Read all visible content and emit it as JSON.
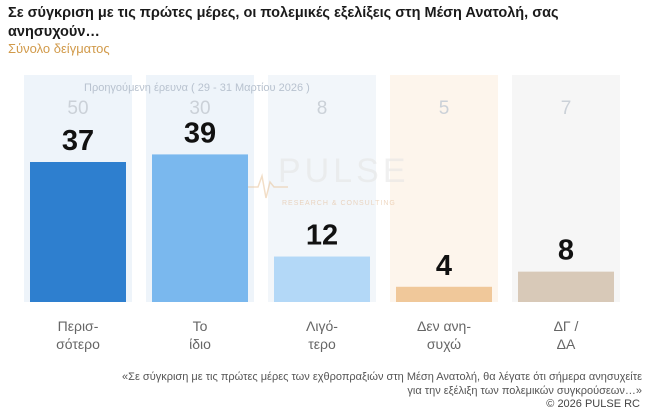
{
  "header": {
    "title": "Σε σύγκριση με τις πρώτες μέρες, οι πολεμικές εξελίξεις στη Μέση Ανατολή, σας ανησυχούν…",
    "subtitle": "Σύνολο δείγματος"
  },
  "chart_data": {
    "type": "bar",
    "categories": [
      "Περισ-σότερο",
      "Το ίδιο",
      "Λιγό-τερο",
      "Δεν ανη-συχώ",
      "ΔΓ / ΔΑ"
    ],
    "category_lines": [
      [
        "Περισ-",
        "σότερο"
      ],
      [
        "Το",
        "ίδιο"
      ],
      [
        "Λιγό-",
        "τερο"
      ],
      [
        "Δεν ανη-",
        "συχώ"
      ],
      [
        "ΔΓ /",
        "ΔΑ"
      ]
    ],
    "series": [
      {
        "name": "Προηγούμενη έρευνα ( 29 - 31 Μαρτίου 2026 )",
        "values": [
          50,
          30,
          8,
          5,
          7
        ]
      },
      {
        "values": [
          37,
          39,
          12,
          4,
          8
        ]
      }
    ],
    "ylim": [
      0,
      60
    ],
    "grid": false,
    "colors": {
      "current_bars": [
        "#2e7fcf",
        "#7ab8ee",
        "#b3d8f7",
        "#f0c89a",
        "#d8c9b8"
      ],
      "previous_columns": [
        "#eef4fa",
        "#eef4fa",
        "#f2f6fa",
        "#fdf5ec",
        "#f6f6f6"
      ]
    }
  },
  "watermark": {
    "brand": "PULSE",
    "tagline": "RESEARCH & CONSULTING"
  },
  "footer": {
    "question": "«Σε σύγκριση με τις πρώτες μέρες των εχθροπραξιών στη Μέση Ανατολή, θα λέγατε ότι σήμερα ανησυχείτε για την εξέλιξη των πολεμικών συγκρούσεων…»",
    "copyright": "© 2026 PULSE RC"
  }
}
